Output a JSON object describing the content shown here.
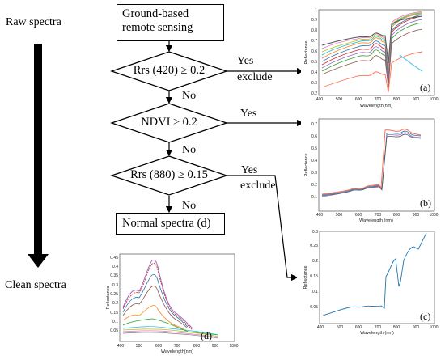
{
  "labels": {
    "raw": "Raw spectra",
    "clean": "Clean spectra"
  },
  "nodes": {
    "start": [
      "Ground-based",
      "remote sensing"
    ],
    "d1": "Rrs (420) ≥ 0.2",
    "d2": "NDVI ≥ 0.2",
    "d3": "Rrs (880) ≥ 0.15",
    "end": "Normal spectra (d)"
  },
  "edges": {
    "d1_yes": "Yes",
    "d1_exclude": "exclude",
    "d1_no": "No",
    "d2_yes": "Yes",
    "d2_no": "No",
    "d3_yes": "Yes",
    "d3_exclude": "exclude",
    "d3_no": "No"
  },
  "panels": {
    "a": {
      "tag": "(a)",
      "ylabel": "Reflectance",
      "xlabel": "Wavelength(nm)",
      "yticks": [
        "0.2",
        "0.3",
        "0.4",
        "0.5",
        "0.6",
        "0.7",
        "0.8",
        "0.9",
        "1"
      ],
      "xticks": [
        "400",
        "500",
        "600",
        "700",
        "800",
        "900",
        "1000"
      ]
    },
    "b": {
      "tag": "(b)",
      "ylabel": "Reflectance",
      "xlabel": "Wavelength (nm)",
      "yticks": [
        "0.1",
        "0.2",
        "0.3",
        "0.4",
        "0.5",
        "0.6",
        "0.7"
      ],
      "xticks": [
        "400",
        "500",
        "600",
        "700",
        "800",
        "900",
        "1000"
      ]
    },
    "c": {
      "tag": "(c)",
      "ylabel": "Reflectance",
      "xlabel": "Wavelength (nm)",
      "yticks": [
        "0.05",
        "0.1",
        "0.15",
        "0.2",
        "0.25",
        "0.3"
      ],
      "xticks": [
        "400",
        "500",
        "600",
        "700",
        "800",
        "900",
        "1000"
      ]
    },
    "d": {
      "tag": "(d)",
      "ylabel": "Reflectance",
      "xlabel": "Wavelength(nm)",
      "yticks": [
        "0.05",
        "0.1",
        "0.15",
        "0.2",
        "0.25",
        "0.3",
        "0.35",
        "0.4",
        "0.45"
      ],
      "xticks": [
        "400",
        "500",
        "600",
        "700",
        "800",
        "900",
        "1000"
      ]
    }
  }
}
